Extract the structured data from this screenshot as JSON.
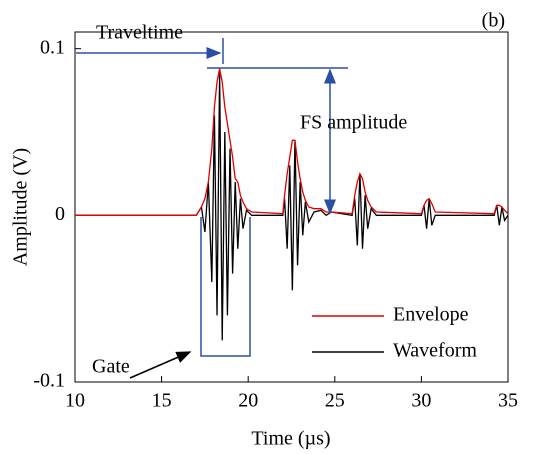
{
  "chart_data": {
    "type": "line",
    "panel_label": "(b)",
    "xlabel": "Time (µs)",
    "ylabel": "Amplitude (V)",
    "annotations": {
      "traveltime": "Traveltime",
      "fs_amplitude": "FS amplitude",
      "gate": "Gate"
    },
    "xlim": [
      10,
      35
    ],
    "xticks": [
      10,
      15,
      20,
      25,
      30,
      35
    ],
    "ylim": [
      -0.1,
      0.11
    ],
    "yticks": [
      -0.1,
      0,
      0.1
    ],
    "legend": "lower right",
    "x": [
      10,
      17,
      17.3,
      17.5,
      17.7,
      17.9,
      18.05,
      18.2,
      18.35,
      18.5,
      18.65,
      18.8,
      18.95,
      19.1,
      19.25,
      19.4,
      19.55,
      19.7,
      19.9,
      20.2,
      22.0,
      22.1,
      22.25,
      22.4,
      22.55,
      22.7,
      22.85,
      23.0,
      23.15,
      23.3,
      23.5,
      23.8,
      24.2,
      24.5,
      24.8,
      26.0,
      26.15,
      26.3,
      26.45,
      26.6,
      26.75,
      26.9,
      27.1,
      27.4,
      30.0,
      30.15,
      30.3,
      30.45,
      30.6,
      30.8,
      34.2,
      34.35,
      34.5,
      34.65,
      34.8,
      35
    ],
    "series": [
      {
        "name": "Waveform",
        "color": "#000000",
        "values": [
          0,
          0,
          0.005,
          -0.01,
          0.02,
          -0.04,
          0.06,
          -0.06,
          0.086,
          -0.075,
          0.05,
          -0.06,
          0.04,
          -0.035,
          0.02,
          -0.02,
          0.01,
          -0.008,
          0.003,
          0,
          0,
          0.01,
          -0.02,
          0.03,
          -0.045,
          0.045,
          -0.03,
          0.02,
          -0.012,
          0.008,
          -0.004,
          0.002,
          0.003,
          0,
          0.002,
          0,
          0.01,
          -0.018,
          0.025,
          -0.02,
          0.012,
          -0.008,
          0.004,
          0,
          0,
          0.006,
          -0.008,
          0.01,
          -0.006,
          0,
          0,
          0.006,
          -0.006,
          0.005,
          -0.003,
          0
        ]
      },
      {
        "name": "Envelope",
        "color": "#e00000",
        "values": [
          0,
          0,
          0.005,
          0.01,
          0.02,
          0.04,
          0.065,
          0.08,
          0.088,
          0.08,
          0.065,
          0.055,
          0.045,
          0.035,
          0.022,
          0.02,
          0.012,
          0.008,
          0.004,
          0.002,
          0.001,
          0.012,
          0.025,
          0.035,
          0.045,
          0.045,
          0.032,
          0.022,
          0.014,
          0.009,
          0.005,
          0.004,
          0.004,
          0.002,
          0.002,
          0.001,
          0.012,
          0.02,
          0.025,
          0.022,
          0.014,
          0.009,
          0.005,
          0.002,
          0.001,
          0.006,
          0.009,
          0.01,
          0.007,
          0.002,
          0.001,
          0.006,
          0.006,
          0.005,
          0.003,
          0.001
        ]
      }
    ]
  }
}
